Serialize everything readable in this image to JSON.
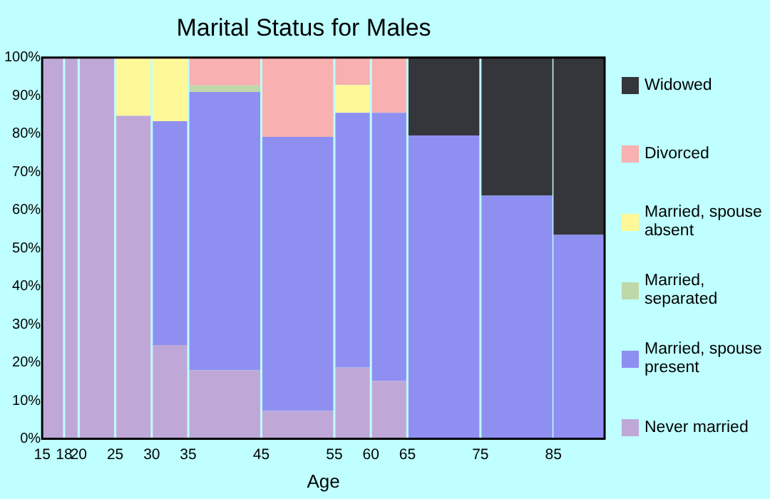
{
  "chart_data": {
    "type": "bar",
    "title": "Marital Status for Males",
    "xlabel": "Age",
    "stacked": true,
    "legend": "right",
    "x": [
      16.5,
      19,
      22.5,
      27.5,
      32.5,
      40,
      50,
      57.5,
      62.5,
      70,
      80,
      88.5
    ],
    "xlim": [
      15,
      92
    ],
    "xticks": [
      15,
      18,
      20,
      25,
      30,
      35,
      45,
      55,
      60,
      65,
      75,
      85
    ],
    "ylim": [
      0,
      100
    ],
    "yticks": [
      {
        "value": 0,
        "label": "0%"
      },
      {
        "value": 10,
        "label": "10%"
      },
      {
        "value": 20,
        "label": "20%"
      },
      {
        "value": 30,
        "label": "30%"
      },
      {
        "value": 40,
        "label": "40%"
      },
      {
        "value": 50,
        "label": "50%"
      },
      {
        "value": 60,
        "label": "60%"
      },
      {
        "value": 70,
        "label": "70%"
      },
      {
        "value": 80,
        "label": "80%"
      },
      {
        "value": 90,
        "label": "90%"
      },
      {
        "value": 100,
        "label": "100%"
      }
    ],
    "series": [
      {
        "name": "Never married",
        "color": "#bfa8d8",
        "values": [
          100,
          100,
          100,
          84.7,
          24.6,
          18,
          7.3,
          18.7,
          15.2,
          0,
          0,
          0
        ]
      },
      {
        "name": "Married, spouse present",
        "color": "#8f8ff2",
        "values": [
          0,
          0,
          0,
          0,
          58.7,
          73,
          71.9,
          66.8,
          70.3,
          79.6,
          63.8,
          53.5
        ]
      },
      {
        "name": "Married, separated",
        "color": "#c0d8a8",
        "values": [
          0,
          0,
          0,
          0,
          0,
          1.7,
          0,
          0,
          0,
          0,
          0,
          0
        ]
      },
      {
        "name": "Married, spouse absent",
        "color": "#fff898",
        "values": [
          0,
          0,
          0,
          15.3,
          16.7,
          0,
          0,
          7.3,
          0,
          0,
          0,
          0
        ]
      },
      {
        "name": "Divorced",
        "color": "#f8b0b0",
        "values": [
          0,
          0,
          0,
          0,
          0,
          7.3,
          20.8,
          7.2,
          14.5,
          0,
          0,
          0
        ]
      },
      {
        "name": "Widowed",
        "color": "#35363c",
        "values": [
          0,
          0,
          0,
          0,
          0,
          0,
          0,
          0,
          0,
          20.4,
          36.2,
          46.5
        ]
      }
    ]
  }
}
